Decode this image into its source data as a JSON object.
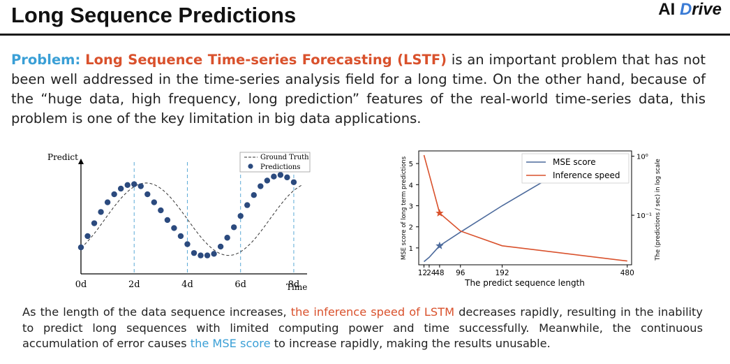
{
  "slide": {
    "title": "Long Sequence Predictions"
  },
  "logo": {
    "part1": "AI ",
    "part2": "D",
    "part3": "rive"
  },
  "problem": {
    "label": "Problem:",
    "highlight": "Long Sequence Time-series Forecasting (LSTF)",
    "text": " is an important problem that has not been well addressed in the time-series analysis field for a long time. On the other hand, because of the “huge data, high frequency, long prediction” features of the real-world time-series data, this problem is one of the key limitation in big data applications."
  },
  "chart_data": [
    {
      "type": "scatter",
      "ylabel": "Predict",
      "xlabel": "Time",
      "xticks": [
        "0d",
        "2d",
        "4d",
        "6d",
        "8d"
      ],
      "legend": [
        "Ground Truth",
        "Predictions"
      ],
      "legend_position": "top-right",
      "xlim": [
        0,
        8.5
      ],
      "ylim": [
        -1.25,
        1.25
      ],
      "series": [
        {
          "name": "Predictions",
          "x": [
            0,
            0.25,
            0.5,
            0.75,
            1.0,
            1.25,
            1.5,
            1.75,
            2.0,
            2.25,
            2.5,
            2.75,
            3.0,
            3.25,
            3.5,
            3.75,
            4.0,
            4.25,
            4.5,
            4.75,
            5.0,
            5.25,
            5.5,
            5.75,
            6.0,
            6.25,
            6.5,
            6.75,
            7.0,
            7.25,
            7.5,
            7.75,
            8.0
          ],
          "y": [
            -0.8,
            -0.52,
            -0.2,
            0.08,
            0.32,
            0.52,
            0.66,
            0.75,
            0.77,
            0.72,
            0.52,
            0.32,
            0.12,
            -0.12,
            -0.32,
            -0.52,
            -0.72,
            -0.94,
            -1.0,
            -1.0,
            -0.96,
            -0.78,
            -0.56,
            -0.3,
            -0.02,
            0.25,
            0.5,
            0.72,
            0.86,
            0.96,
            1.0,
            0.94,
            0.82
          ]
        }
      ]
    },
    {
      "type": "line",
      "xlabel": "The predict sequence length",
      "ylabel": "MSE score of long term predictions",
      "y2label": "The (predictions / sec) in log scale",
      "xticks": [
        12,
        24,
        48,
        96,
        192,
        480
      ],
      "yticks": [
        1,
        2,
        3,
        4,
        5
      ],
      "y2ticks": [
        "10⁰",
        "10⁻¹"
      ],
      "xlim": [
        0,
        490
      ],
      "ylim": [
        0.2,
        5.6
      ],
      "legend_position": "top-right",
      "series": [
        {
          "name": "MSE score",
          "color": "#4c6a9c",
          "x": [
            12,
            24,
            48,
            96,
            192,
            320
          ],
          "y": [
            0.35,
            0.55,
            1.1,
            1.75,
            3.0,
            4.55
          ]
        },
        {
          "name": "Inference speed",
          "color": "#d9512c",
          "x": [
            12,
            24,
            48,
            96,
            192,
            480
          ],
          "y": [
            5.4,
            4.5,
            2.65,
            1.8,
            1.1,
            0.38
          ]
        }
      ],
      "markers": [
        {
          "series": "MSE score",
          "x": 48,
          "y": 1.1
        },
        {
          "series": "Inference speed",
          "x": 48,
          "y": 2.65
        }
      ]
    }
  ],
  "bottom": {
    "t1": "As the length of the data sequence increases, ",
    "h1": "the inference speed of LSTM",
    "t2": " decreases rapidly, resulting in the inability to predict long sequences with limited computing power and time successfully. Meanwhile, the continuous accumulation of error causes ",
    "h2": "the MSE score",
    "t3": " to increase rapidly, making the results unusable."
  }
}
